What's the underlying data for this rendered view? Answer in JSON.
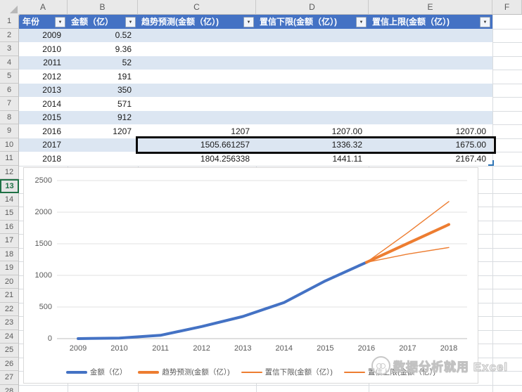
{
  "spreadsheet": {
    "column_letters": [
      "A",
      "B",
      "C",
      "D",
      "E",
      "F"
    ],
    "row_numbers": [
      1,
      2,
      3,
      4,
      5,
      6,
      7,
      8,
      9,
      10,
      11,
      12,
      13,
      14,
      15,
      16,
      17,
      18,
      19,
      20,
      21,
      22,
      23,
      24,
      25,
      26,
      27,
      28
    ],
    "active_row_header": 13,
    "table": {
      "headers": [
        "年份",
        "金额（亿）",
        "趋势预测(金额（亿）)",
        "置信下限(金额（亿）)",
        "置信上限(金额（亿）)"
      ],
      "rows": [
        [
          "2009",
          "0.52",
          "",
          "",
          ""
        ],
        [
          "2010",
          "9.36",
          "",
          "",
          ""
        ],
        [
          "2011",
          "52",
          "",
          "",
          ""
        ],
        [
          "2012",
          "191",
          "",
          "",
          ""
        ],
        [
          "2013",
          "350",
          "",
          "",
          ""
        ],
        [
          "2014",
          "571",
          "",
          "",
          ""
        ],
        [
          "2015",
          "912",
          "",
          "",
          ""
        ],
        [
          "2016",
          "1207",
          "1207",
          "1207.00",
          "1207.00"
        ],
        [
          "2017",
          "",
          "1505.661257",
          "1336.32",
          "1675.00"
        ],
        [
          "2018",
          "",
          "1804.256338",
          "1441.11",
          "2167.40"
        ]
      ],
      "highlighted_range": "C10:E10",
      "filter_icon": "▼"
    }
  },
  "chart_data": {
    "type": "line",
    "x": [
      2009,
      2010,
      2011,
      2012,
      2013,
      2014,
      2015,
      2016,
      2017,
      2018
    ],
    "series": [
      {
        "name": "金额（亿）",
        "color": "#4472C4",
        "thick": true,
        "values": [
          0.52,
          9.36,
          52,
          191,
          350,
          571,
          912,
          1207,
          null,
          null
        ]
      },
      {
        "name": "趋势预测(金额（亿）)",
        "color": "#ED7D31",
        "thick": true,
        "values": [
          null,
          null,
          null,
          null,
          null,
          null,
          null,
          1207,
          1505.661257,
          1804.256338
        ]
      },
      {
        "name": "置信下限(金额（亿）)",
        "color": "#ED7D31",
        "thick": false,
        "values": [
          null,
          null,
          null,
          null,
          null,
          null,
          null,
          1207,
          1336.32,
          1441.11
        ]
      },
      {
        "name": "置信上限(金额（亿）)",
        "color": "#ED7D31",
        "thick": false,
        "values": [
          null,
          null,
          null,
          null,
          null,
          null,
          null,
          1207,
          1675.0,
          2167.4
        ]
      }
    ],
    "ylim": [
      0,
      2500
    ],
    "yticks": [
      0,
      500,
      1000,
      1500,
      2000,
      2500
    ],
    "grid": true,
    "legend_position": "bottom"
  },
  "watermark": {
    "text": "数据分析就用 Excel"
  },
  "colors": {
    "table_header_fill": "#4472C4",
    "table_band_fill": "#DCE6F2",
    "series_blue": "#4472C4",
    "series_orange": "#ED7D31",
    "selection_border": "#0A0A0A",
    "axis_text": "#595959"
  }
}
